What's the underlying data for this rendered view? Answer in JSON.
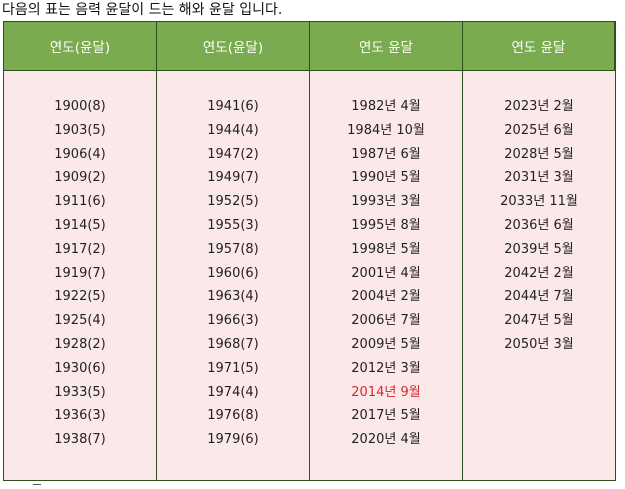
{
  "intro_text": "다음의 표는 음력 윤달이 드는 해와 윤달 입니다.",
  "table": {
    "headers": [
      "연도(윤달)",
      "연도(윤달)",
      "연도 윤달",
      "연도 윤달"
    ],
    "columns": [
      [
        "1900(8)",
        "1903(5)",
        "1906(4)",
        "1909(2)",
        "1911(6)",
        "1914(5)",
        "1917(2)",
        "1919(7)",
        "1922(5)",
        "1925(4)",
        "1928(2)",
        "1930(6)",
        "1933(5)",
        "1936(3)",
        "1938(7)"
      ],
      [
        "1941(6)",
        "1944(4)",
        "1947(2)",
        "1949(7)",
        "1952(5)",
        "1955(3)",
        "1957(8)",
        "1960(6)",
        "1963(4)",
        "1966(3)",
        "1968(7)",
        "1971(5)",
        "1974(4)",
        "1976(8)",
        "1979(6)"
      ],
      [
        "1982년 4월",
        "1984년 10월",
        "1987년 6월",
        "1990년 5월",
        "1993년 3월",
        "1995년 8월",
        "1998년 5월",
        "2001년 4월",
        "2004년 2월",
        "2006년 7월",
        "2009년 5월",
        "2012년 3월",
        "2014년 9월",
        "2017년 5월",
        "2020년 4월"
      ],
      [
        "2023년 2월",
        "2025년 6월",
        "2028년 5월",
        "2031년 3월",
        "2033년 11월",
        "2036년 6월",
        "2039년 5월",
        "2042년 2월",
        "2044년 7월",
        "2047년 5월",
        "2050년 3월"
      ]
    ],
    "highlight": {
      "column": 2,
      "row": 12,
      "color": "#d8292f"
    },
    "colors": {
      "header_bg": "#7aab4e",
      "header_text": "#ffffff",
      "body_bg": "#fbe9e9",
      "border": "#2f4f1f"
    }
  }
}
